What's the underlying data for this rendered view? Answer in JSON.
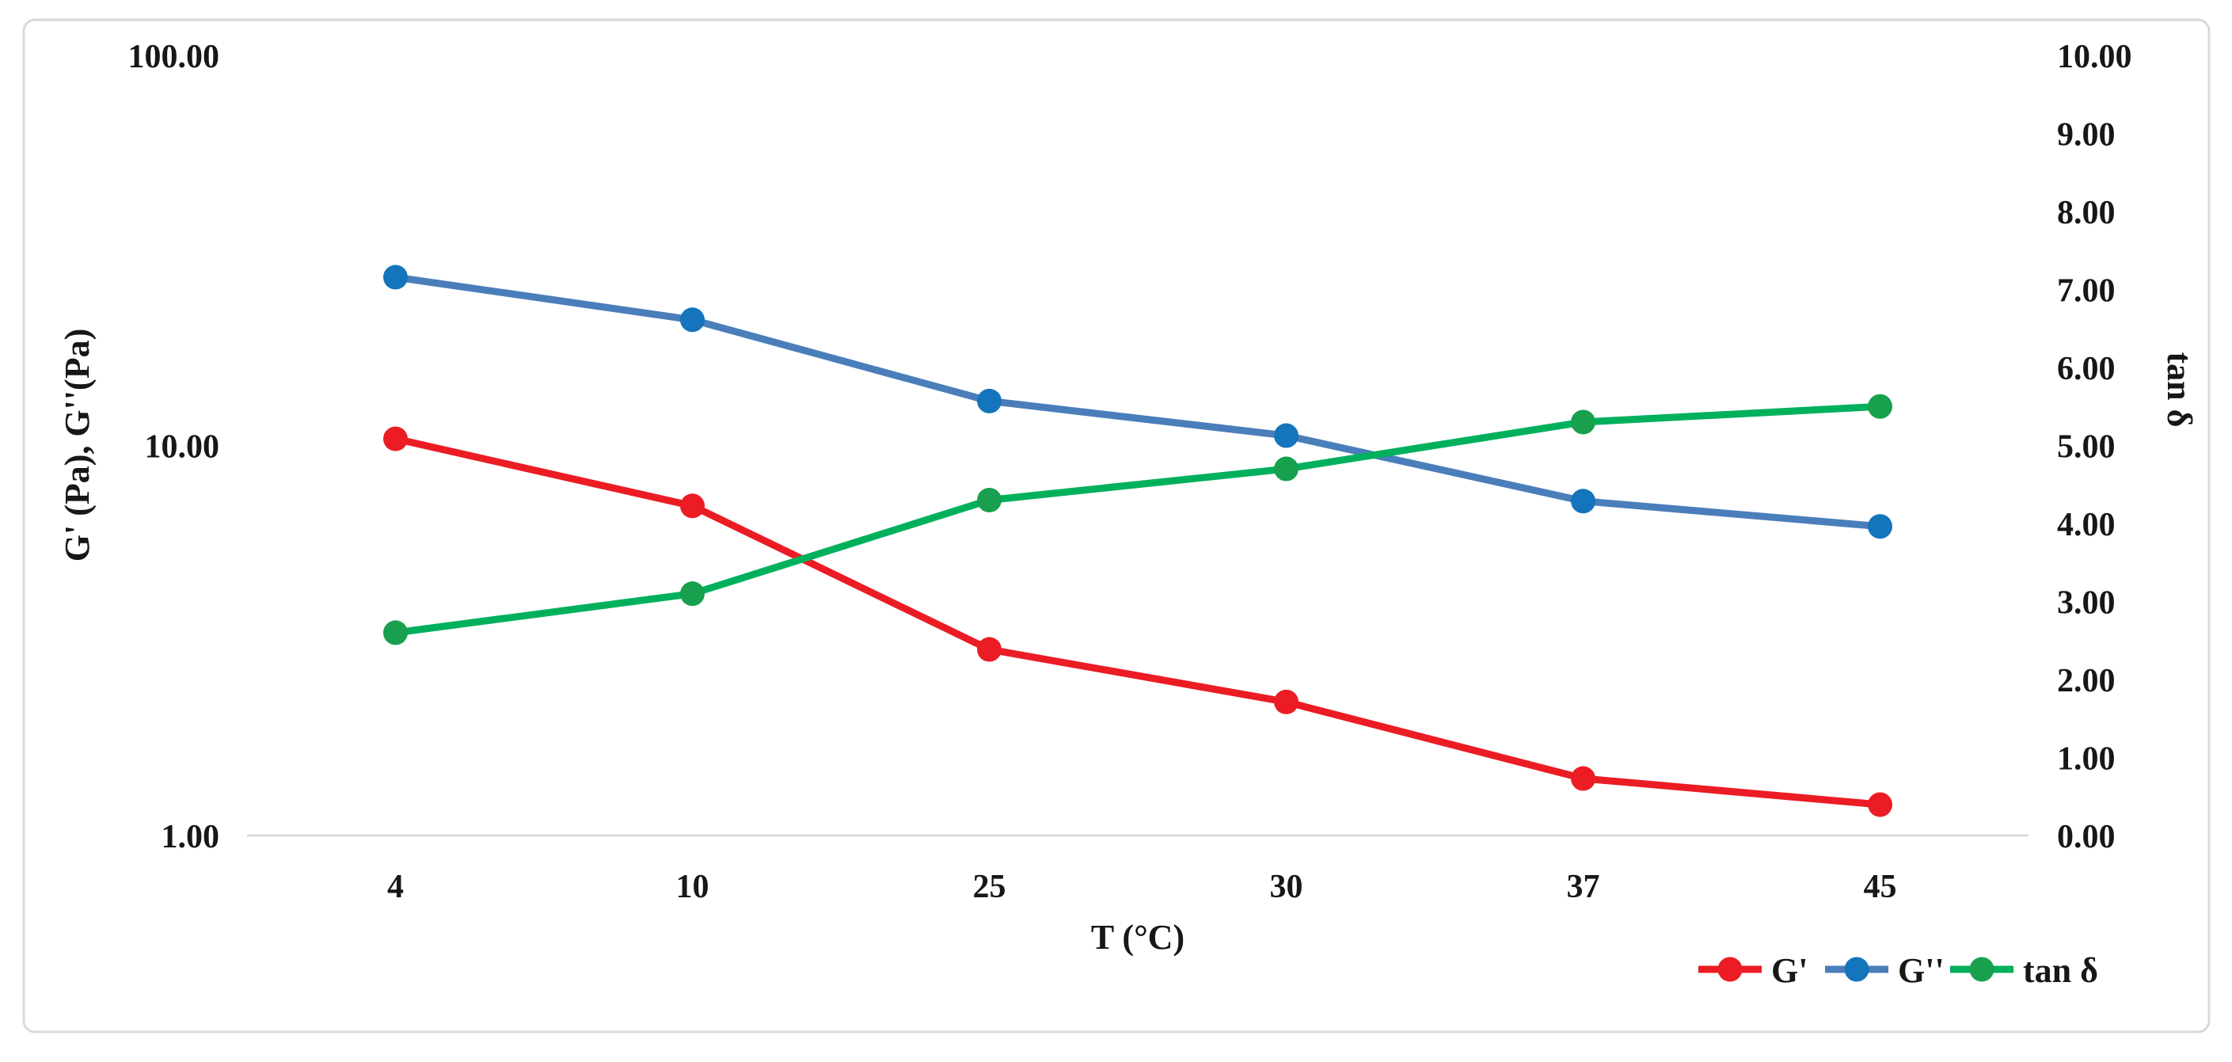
{
  "figure": {
    "background": "#ffffff",
    "border_color": "#d9d9d9",
    "text_color": "#171717"
  },
  "chart_data": {
    "type": "line",
    "title": "",
    "categories": [
      "4",
      "10",
      "25",
      "30",
      "37",
      "45"
    ],
    "x_axis": {
      "title": "T (°C)",
      "tick_labels": [
        "4",
        "10",
        "25",
        "30",
        "37",
        "45"
      ]
    },
    "left_axis": {
      "title": "G' (Pa), G''(Pa)",
      "scale": "log",
      "range": [
        1,
        100
      ],
      "ticks": [
        1,
        10,
        100
      ],
      "tick_labels": [
        "1.00",
        "10.00",
        "100.00"
      ]
    },
    "right_axis": {
      "title": "tan δ",
      "scale": "linear",
      "range": [
        0,
        10
      ],
      "tick_step": 1,
      "tick_labels": [
        "0.00",
        "1.00",
        "2.00",
        "3.00",
        "4.00",
        "5.00",
        "6.00",
        "7.00",
        "8.00",
        "9.00",
        "10.00"
      ]
    },
    "grid": "off",
    "legend_position": "bottom-right",
    "series": [
      {
        "name": "G'",
        "axis": "left",
        "line_color": "#ec1c24",
        "marker_color": "#ec1c24",
        "values": [
          10.4,
          7.0,
          3.0,
          2.2,
          1.4,
          1.2
        ]
      },
      {
        "name": "G''",
        "axis": "left",
        "line_color": "#4a7ebb",
        "marker_color": "#1474bc",
        "values": [
          27.0,
          21.0,
          13.0,
          10.6,
          7.2,
          6.2
        ]
      },
      {
        "name": "tan δ",
        "axis": "right",
        "line_color": "#00b05c",
        "marker_color": "#18a04e",
        "values": [
          2.6,
          3.1,
          4.3,
          4.7,
          5.3,
          5.5
        ]
      }
    ]
  }
}
